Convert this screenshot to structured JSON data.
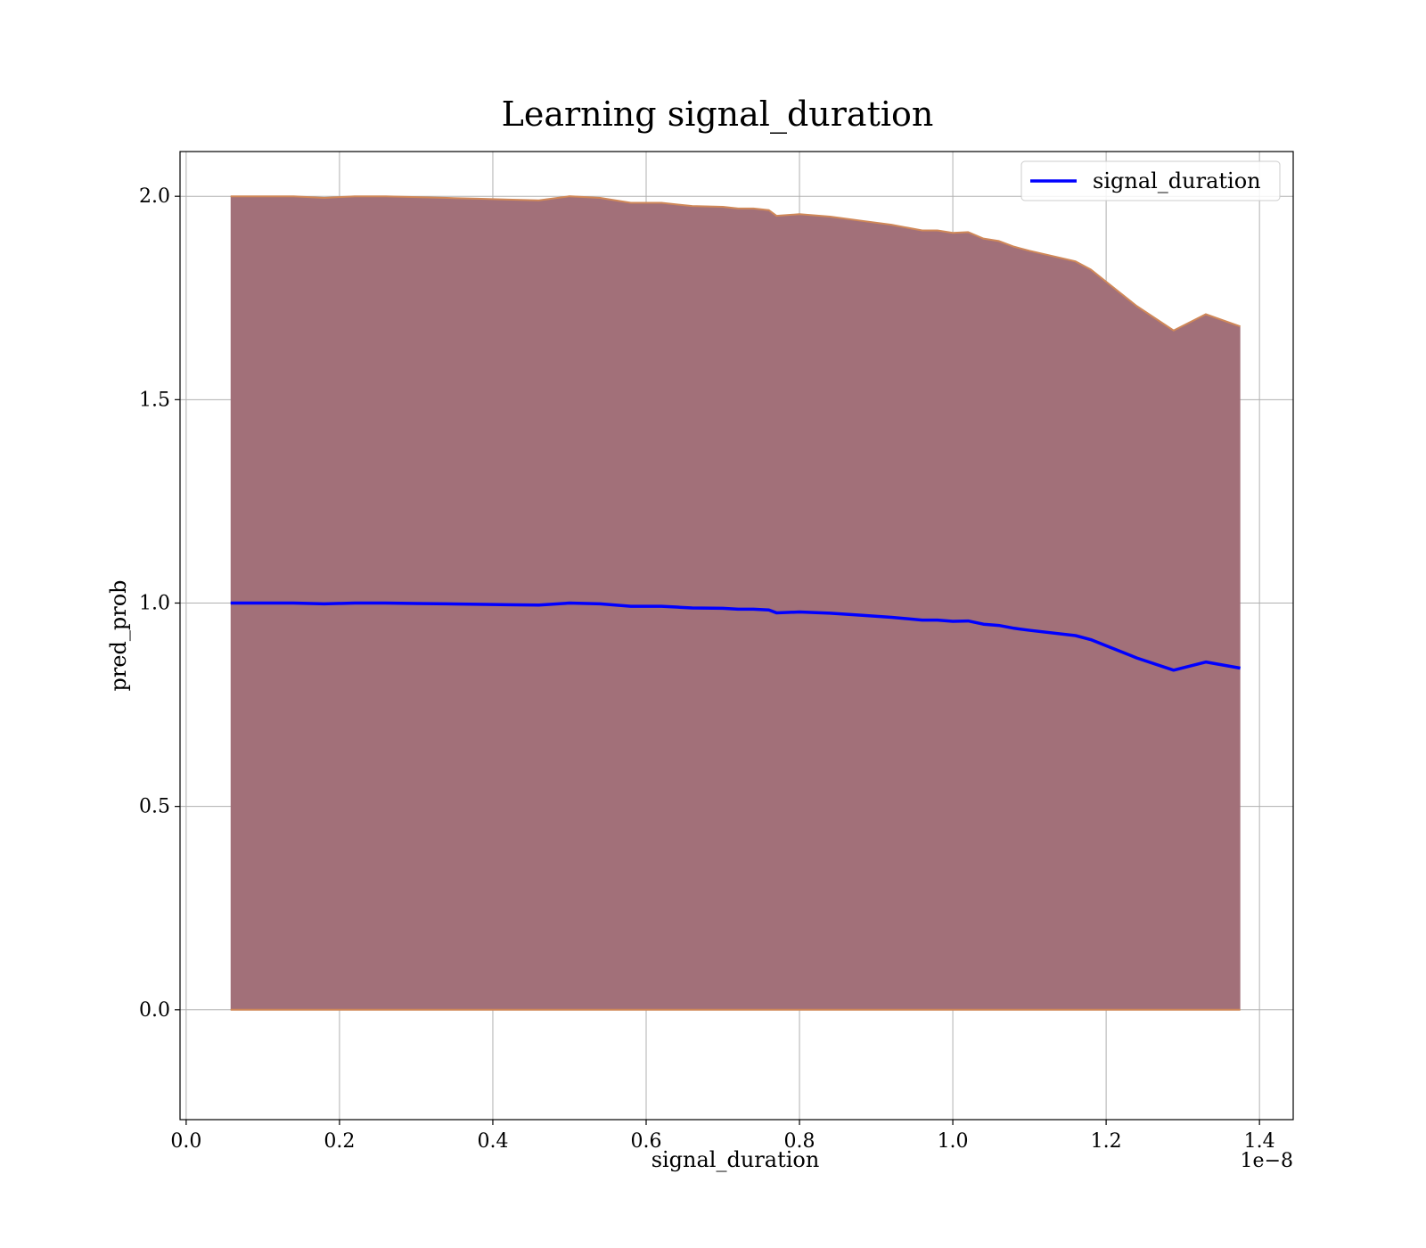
{
  "chart_data": {
    "type": "line",
    "title": "Learning signal_duration",
    "xlabel": "signal_duration",
    "ylabel": "pred_prob",
    "x_offset_label": "1e−8",
    "xlim": [
      -0.008,
      1.444
    ],
    "ylim": [
      -0.27,
      2.11
    ],
    "x_ticks": [
      0.0,
      0.2,
      0.4,
      0.6,
      0.8,
      1.0,
      1.2,
      1.4
    ],
    "x_tick_labels": [
      "0.0",
      "0.2",
      "0.4",
      "0.6",
      "0.8",
      "1.0",
      "1.2",
      "1.4"
    ],
    "y_ticks": [
      0.0,
      0.5,
      1.0,
      1.5,
      2.0
    ],
    "y_tick_labels": [
      "0.0",
      "0.5",
      "1.0",
      "1.5",
      "2.0"
    ],
    "grid": true,
    "legend_position": "top-right",
    "series": [
      {
        "name": "signal_duration",
        "color": "#0000ff",
        "x": [
          0.058,
          0.1,
          0.14,
          0.18,
          0.22,
          0.26,
          0.3,
          0.34,
          0.38,
          0.42,
          0.46,
          0.5,
          0.54,
          0.58,
          0.62,
          0.64,
          0.66,
          0.7,
          0.72,
          0.74,
          0.76,
          0.77,
          0.8,
          0.84,
          0.88,
          0.92,
          0.96,
          0.98,
          1.0,
          1.02,
          1.04,
          1.06,
          1.08,
          1.1,
          1.16,
          1.18,
          1.2,
          1.24,
          1.288,
          1.33,
          1.375
        ],
        "y": [
          1.0,
          1.0,
          1.0,
          0.998,
          1.0,
          1.0,
          0.999,
          0.998,
          0.997,
          0.996,
          0.995,
          1.0,
          0.998,
          0.992,
          0.992,
          0.99,
          0.988,
          0.987,
          0.985,
          0.985,
          0.983,
          0.976,
          0.978,
          0.975,
          0.97,
          0.965,
          0.958,
          0.958,
          0.955,
          0.956,
          0.948,
          0.945,
          0.938,
          0.933,
          0.92,
          0.91,
          0.895,
          0.865,
          0.835,
          0.855,
          0.84
        ]
      }
    ],
    "band": {
      "color": "#a27079",
      "edge_color": "#d08858",
      "upper": [
        2.0,
        2.0,
        2.0,
        1.996,
        2.0,
        2.0,
        1.998,
        1.996,
        1.994,
        1.992,
        1.99,
        2.0,
        1.996,
        1.984,
        1.984,
        1.98,
        1.976,
        1.974,
        1.97,
        1.97,
        1.966,
        1.952,
        1.956,
        1.95,
        1.94,
        1.93,
        1.916,
        1.916,
        1.91,
        1.912,
        1.896,
        1.89,
        1.876,
        1.866,
        1.84,
        1.82,
        1.79,
        1.73,
        1.67,
        1.71,
        1.68
      ],
      "lower": [
        0.0,
        0.0,
        0.0,
        0.0,
        0.0,
        0.0,
        0.0,
        0.0,
        0.0,
        0.0,
        0.0,
        0.0,
        0.0,
        0.0,
        0.0,
        0.0,
        0.0,
        0.0,
        0.0,
        0.0,
        0.0,
        0.0,
        0.0,
        0.0,
        0.0,
        0.0,
        0.0,
        0.0,
        0.0,
        0.0,
        0.0,
        0.0,
        0.0,
        0.0,
        0.0,
        0.0,
        0.0,
        0.0,
        0.0,
        0.0,
        0.0
      ]
    }
  }
}
